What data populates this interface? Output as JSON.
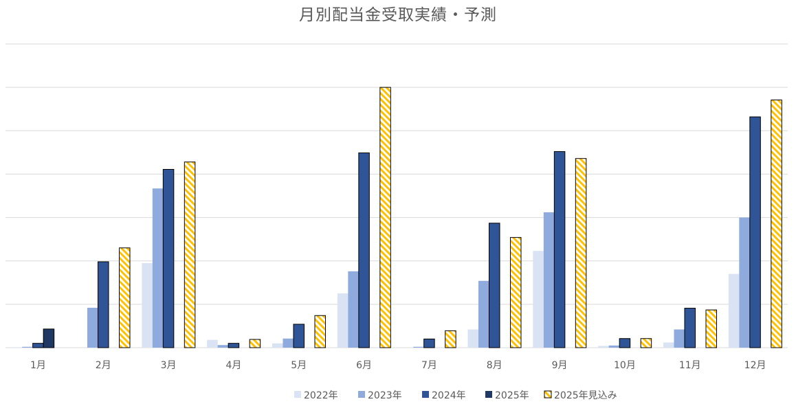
{
  "chart_data": {
    "type": "bar",
    "title": "月別配当金受取実績・予測",
    "categories": [
      "1月",
      "2月",
      "3月",
      "4月",
      "5月",
      "6月",
      "7月",
      "8月",
      "9月",
      "10月",
      "11月",
      "12月"
    ],
    "series": [
      {
        "name": "2022年",
        "color": "#dae3f3",
        "pattern": "solid",
        "values": [
          0.1,
          0,
          19.5,
          1.8,
          1,
          12.5,
          0,
          4.2,
          22.3,
          0.4,
          1.2,
          17
        ]
      },
      {
        "name": "2023年",
        "color": "#8faadc",
        "pattern": "solid",
        "values": [
          0.2,
          9.2,
          36.7,
          0.6,
          2.1,
          17.6,
          0.2,
          15.4,
          31.2,
          0.5,
          4.2,
          30
        ]
      },
      {
        "name": "2024年",
        "color": "#2f5597",
        "pattern": "solid",
        "values": [
          1,
          19.8,
          41.1,
          1,
          5.4,
          44.9,
          2,
          28.7,
          45.2,
          2.1,
          9.1,
          53.2
        ]
      },
      {
        "name": "2025年",
        "color": "#203864",
        "pattern": "solid",
        "values": [
          4.3,
          null,
          null,
          null,
          null,
          null,
          null,
          null,
          null,
          null,
          null,
          null
        ]
      },
      {
        "name": "2025年見込み",
        "color": "#ffc000",
        "pattern": "hatch",
        "values": [
          null,
          23,
          42.8,
          1.9,
          7.4,
          60,
          3.9,
          25.4,
          43.6,
          2.1,
          8.7,
          57.1
        ]
      }
    ],
    "ylim": [
      0,
      70
    ],
    "grid": true,
    "y_tick_labels_visible": false,
    "legend_position": "bottom"
  }
}
